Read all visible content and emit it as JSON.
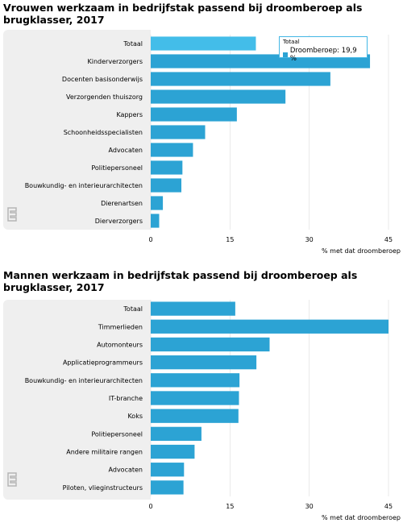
{
  "chart_data": [
    {
      "type": "bar",
      "orientation": "horizontal",
      "title": "Vrouwen werkzaam in bedrijfstak passend bij droomberoep als brugklasser, 2017",
      "categories": [
        "Totaal",
        "Kinderverzorgers",
        "Docenten basisonderwijs",
        "Verzorgenden thuiszorg",
        "Kappers",
        "Schoonheidsspecialisten",
        "Advocaten",
        "Politiepersoneel",
        "Bouwkundig- en interieurarchitecten",
        "Dierenartsen",
        "Dierverzorgers"
      ],
      "values": [
        19.9,
        41.5,
        34.0,
        25.5,
        16.3,
        10.3,
        8.0,
        6.0,
        5.8,
        2.3,
        1.6
      ],
      "xlabel": "% met dat droomberoep",
      "xticks": [
        "0",
        "15",
        "30",
        "45"
      ],
      "xlim": [
        0,
        45
      ],
      "highlight_index": 0,
      "tooltip": {
        "title": "Totaal",
        "label": "Droomberoep: 19,9 %"
      }
    },
    {
      "type": "bar",
      "orientation": "horizontal",
      "title": "Mannen werkzaam in bedrijfstak passend bij droomberoep als brugklasser, 2017",
      "categories": [
        "Totaal",
        "Timmerlieden",
        "Automonteurs",
        "Applicatieprogrammeurs",
        "Bouwkundig- en interieurarchitecten",
        "IT-branche",
        "Koks",
        "Politiepersoneel",
        "Andere militaire rangen",
        "Advocaten",
        "Piloten, vlieginstructeurs"
      ],
      "values": [
        16.0,
        45.0,
        22.5,
        20.0,
        16.8,
        16.7,
        16.6,
        9.6,
        8.3,
        6.3,
        6.2
      ],
      "xlabel": "% met dat droomberoep",
      "xticks": [
        "0",
        "15",
        "30",
        "45"
      ],
      "xlim": [
        0,
        45
      ]
    }
  ],
  "colors": {
    "bar": "#2ca3d4",
    "highlight": "#43bde9",
    "panel": "#efefef",
    "grid": "#ffffff"
  },
  "icons": {
    "logo": "cbs-logo-icon"
  }
}
